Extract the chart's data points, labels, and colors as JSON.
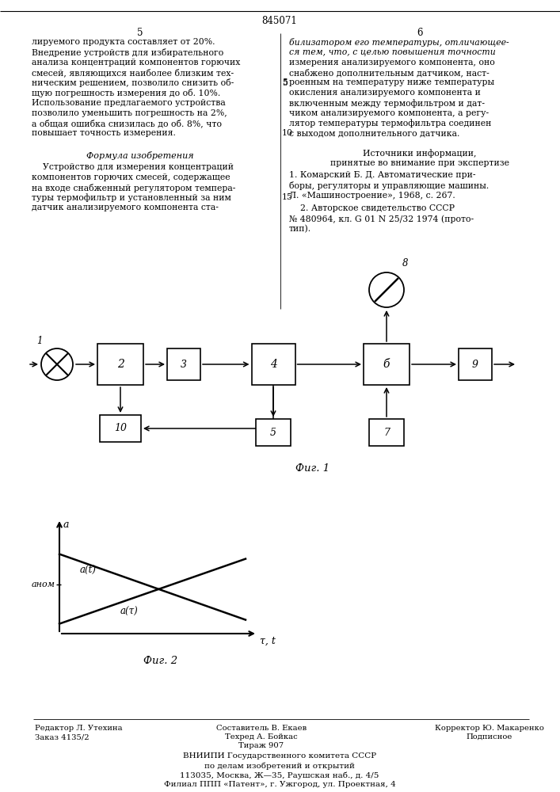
{
  "page_number": "845071",
  "col_left_number": "5",
  "col_right_number": "6",
  "left_col_lines": [
    "лируемого продукта составляет от 20%.",
    "Внедрение устройств для избирательного",
    "анализа концентраций компонентов горючих",
    "смесей, являющихся наиболее близким тех-",
    "ническим решением, позволило снизить об-",
    "щую погрешность измерения до об. 10%.",
    "Использование предлагаемого устройства",
    "позволило уменьшить погрешность на 2%,",
    "а общая ошибка снизилась до об. 8%, что",
    "повышает точность измерения."
  ],
  "formula_title": "Формула изобретения",
  "formula_lines": [
    "    Устройство для измерения концентраций",
    "компонентов горючих смесей, содержащее",
    "на входе снабженный регулятором темпера-",
    "туры термофильтр и установленный за ним",
    "датчик анализируемого компонента ста-"
  ],
  "right_col_lines_italic": [
    "билизатором его температуры, отличающее-",
    "ся тем, что, с целью повышения точности"
  ],
  "right_col_lines_normal": [
    "измерения анализируемого компонента, оно",
    "снабжено дополнительным датчиком, наст-",
    "роенным на температуру ниже температуры",
    "окисления анализируемого компонента и",
    "включенным между термофильтром и дат-",
    "чиком анализируемого компонента, а регу-",
    "лятор температуры термофильтра соединен",
    "с выходом дополнительного датчика."
  ],
  "sources_title": "Источники информации,",
  "sources_subtitle": "принятые во внимание при экспертизе",
  "source1a": "1. Комарский Б. Д. Автоматические при-",
  "source1b": "боры, регуляторы и управляющие машины.",
  "source1c": "Л. «Машиностроение», 1968, с. 267.",
  "source2a": "    2. Авторское свидетельство СССР",
  "source2b": "№ 480964, кл. G 01 N 25/32 1974 (прото-",
  "source2c": "тип).",
  "line_nums_left": {
    "5": 5,
    "10": 10
  },
  "line_nums_right": {
    "5": 5,
    "10": 10,
    "15": 15
  },
  "fig1_label": "Фиг. 1",
  "fig2_label": "Фиг. 2",
  "footer_col1": [
    "Редактор Л. Утехина",
    "Заказ 4135/2"
  ],
  "footer_col2_line1": "Составитель В. Екаев",
  "footer_col2_line2": "Техред А. Бойкас",
  "footer_col2_line3": "Тираж 907",
  "footer_col3_line1": "Корректор Ю. Макаренко",
  "footer_col3_line2": "Подписное",
  "footer_org1": "ВНИИПИ Государственного комитета СССР",
  "footer_org2": "по делам изобретений и открытий",
  "footer_addr1": "113035, Москва, Ж—35, Раушская наб., д. 4/5",
  "footer_addr2": "Филиал ППП «Патент», г. Ужгород, ул. Проектная, 4",
  "bg_color": "#ffffff",
  "text_color": "#000000",
  "line_color": "#000000"
}
